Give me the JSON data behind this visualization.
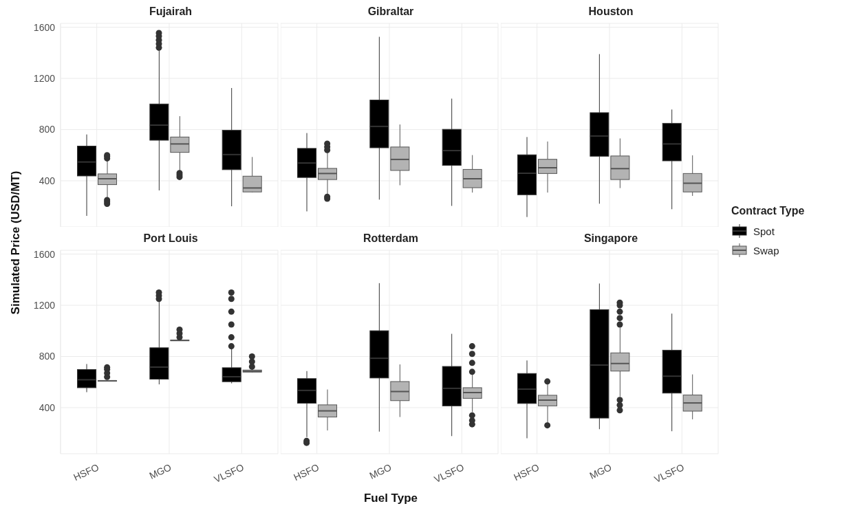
{
  "chart_data": [
    {
      "type": "box",
      "title": "Fujairah",
      "ylabel": "Simulated Price (USD/MT)",
      "legend": "right",
      "legend_title": "Contract Type",
      "categories": [
        "HSFO",
        "MGO",
        "VLSFO"
      ],
      "ylim": [
        40,
        1630
      ],
      "yticks": [
        400,
        800,
        1200,
        1600
      ],
      "grid": true,
      "tick_labels": "y",
      "series": [
        {
          "name": "Spot",
          "color": "#000000",
          "boxes": [
            {
              "low": 126,
              "q1": 438,
              "median": 547,
              "q3": 671,
              "high": 762
            },
            {
              "low": 325,
              "q1": 717,
              "median": 835,
              "q3": 1000,
              "high": 1418,
              "outliers": [
                1440,
                1470,
                1500,
                1530,
                1555
              ]
            },
            {
              "low": 201,
              "q1": 487,
              "median": 605,
              "q3": 795,
              "high": 1125
            }
          ]
        },
        {
          "name": "Swap",
          "color": "#b3b3b3",
          "boxes": [
            {
              "low": 262,
              "q1": 370,
              "median": 416,
              "q3": 454,
              "high": 560,
              "outliers": [
                220,
                235,
                250,
                575,
                590,
                600
              ]
            },
            {
              "low": 470,
              "q1": 622,
              "median": 688,
              "q3": 742,
              "high": 905,
              "outliers": [
                430,
                445,
                460
              ]
            },
            {
              "low": 310,
              "q1": 313,
              "median": 344,
              "q3": 436,
              "high": 586
            }
          ]
        }
      ]
    },
    {
      "type": "box",
      "title": "Gibraltar",
      "categories": [
        "HSFO",
        "MGO",
        "VLSFO"
      ],
      "ylim": [
        40,
        1630
      ],
      "yticks": [
        400,
        800,
        1200,
        1600
      ],
      "grid": true,
      "tick_labels": false,
      "series": [
        {
          "name": "Spot",
          "color": "#000000",
          "boxes": [
            {
              "low": 161,
              "q1": 426,
              "median": 539,
              "q3": 653,
              "high": 773
            },
            {
              "low": 253,
              "q1": 658,
              "median": 825,
              "q3": 1031,
              "high": 1525
            },
            {
              "low": 204,
              "q1": 521,
              "median": 636,
              "q3": 802,
              "high": 1042
            }
          ]
        },
        {
          "name": "Swap",
          "color": "#b3b3b3",
          "boxes": [
            {
              "low": 290,
              "q1": 410,
              "median": 457,
              "q3": 497,
              "high": 620,
              "outliers": [
                260,
                275,
                640,
                665,
                690
              ]
            },
            {
              "low": 365,
              "q1": 481,
              "median": 567,
              "q3": 664,
              "high": 840
            },
            {
              "low": 308,
              "q1": 346,
              "median": 416,
              "q3": 489,
              "high": 601
            }
          ]
        }
      ]
    },
    {
      "type": "box",
      "title": "Houston",
      "categories": [
        "HSFO",
        "MGO",
        "VLSFO"
      ],
      "ylim": [
        40,
        1630
      ],
      "yticks": [
        400,
        800,
        1200,
        1600
      ],
      "grid": true,
      "tick_labels": false,
      "series": [
        {
          "name": "Spot",
          "color": "#000000",
          "boxes": [
            {
              "low": 117,
              "q1": 291,
              "median": 459,
              "q3": 603,
              "high": 742
            },
            {
              "low": 221,
              "q1": 592,
              "median": 750,
              "q3": 932,
              "high": 1390
            },
            {
              "low": 178,
              "q1": 556,
              "median": 688,
              "q3": 849,
              "high": 957
            }
          ]
        },
        {
          "name": "Swap",
          "color": "#b3b3b3",
          "boxes": [
            {
              "low": 308,
              "q1": 457,
              "median": 502,
              "q3": 568,
              "high": 707
            },
            {
              "low": 343,
              "q1": 410,
              "median": 495,
              "q3": 594,
              "high": 731
            },
            {
              "low": 282,
              "q1": 313,
              "median": 381,
              "q3": 457,
              "high": 599
            }
          ]
        }
      ]
    },
    {
      "type": "box",
      "title": "Port Louis",
      "categories": [
        "HSFO",
        "MGO",
        "VLSFO"
      ],
      "ylim": [
        40,
        1630
      ],
      "yticks": [
        400,
        800,
        1200,
        1600
      ],
      "grid": true,
      "series": [
        {
          "name": "Spot",
          "color": "#000000",
          "boxes": [
            {
              "low": 521,
              "q1": 556,
              "median": 618,
              "q3": 698,
              "high": 741
            },
            {
              "low": 582,
              "q1": 623,
              "median": 717,
              "q3": 868,
              "high": 1231,
              "outliers": [
                1250,
                1275,
                1300
              ]
            },
            {
              "low": 590,
              "q1": 603,
              "median": 642,
              "q3": 712,
              "high": 868,
              "outliers": [
                880,
                950,
                1050,
                1150,
                1250,
                1300
              ]
            }
          ]
        },
        {
          "name": "Swap",
          "color": "#b3b3b3",
          "boxes": [
            {
              "low": 605,
              "q1": 608,
              "median": 610,
              "q3": 612,
              "high": 615,
              "outliers": [
                640,
                670,
                700,
                715
              ]
            },
            {
              "low": 922,
              "q1": 924,
              "median": 926,
              "q3": 928,
              "high": 930,
              "outliers": [
                950,
                980,
                1010
              ]
            },
            {
              "low": 675,
              "q1": 678,
              "median": 684,
              "q3": 694,
              "high": 700,
              "outliers": [
                720,
                760,
                800
              ]
            }
          ]
        }
      ]
    },
    {
      "type": "box",
      "title": "Rotterdam",
      "xlabel": "Fuel Type",
      "categories": [
        "HSFO",
        "MGO",
        "VLSFO"
      ],
      "ylim": [
        40,
        1630
      ],
      "yticks": [
        400,
        800,
        1200,
        1600
      ],
      "grid": true,
      "tick_labels": "x",
      "series": [
        {
          "name": "Spot",
          "color": "#000000",
          "boxes": [
            {
              "low": 170,
              "q1": 435,
              "median": 535,
              "q3": 627,
              "high": 686,
              "outliers": [
                125,
                140
              ]
            },
            {
              "low": 213,
              "q1": 632,
              "median": 786,
              "q3": 1001,
              "high": 1373
            },
            {
              "low": 178,
              "q1": 414,
              "median": 551,
              "q3": 722,
              "high": 977
            }
          ]
        },
        {
          "name": "Swap",
          "color": "#b3b3b3",
          "boxes": [
            {
              "low": 222,
              "q1": 327,
              "median": 375,
              "q3": 422,
              "high": 542
            },
            {
              "low": 327,
              "q1": 455,
              "median": 526,
              "q3": 604,
              "high": 738
            },
            {
              "low": 365,
              "q1": 473,
              "median": 518,
              "q3": 556,
              "high": 668,
              "outliers": [
                270,
                300,
                340,
                680,
                750,
                820,
                880
              ]
            }
          ]
        }
      ]
    },
    {
      "type": "box",
      "title": "Singapore",
      "categories": [
        "HSFO",
        "MGO",
        "VLSFO"
      ],
      "ylim": [
        40,
        1630
      ],
      "yticks": [
        400,
        800,
        1200,
        1600
      ],
      "grid": true,
      "tick_labels": "x",
      "series": [
        {
          "name": "Spot",
          "color": "#000000",
          "boxes": [
            {
              "low": 161,
              "q1": 433,
              "median": 545,
              "q3": 667,
              "high": 769
            },
            {
              "low": 232,
              "q1": 319,
              "median": 733,
              "q3": 1166,
              "high": 1370
            },
            {
              "low": 216,
              "q1": 514,
              "median": 646,
              "q3": 849,
              "high": 1135
            }
          ]
        },
        {
          "name": "Swap",
          "color": "#b3b3b3",
          "boxes": [
            {
              "low": 279,
              "q1": 414,
              "median": 459,
              "q3": 497,
              "high": 591,
              "outliers": [
                262,
                605
              ]
            },
            {
              "low": 487,
              "q1": 686,
              "median": 745,
              "q3": 828,
              "high": 1027,
              "outliers": [
                380,
                420,
                460,
                1050,
                1100,
                1150,
                1200,
                1221
              ]
            },
            {
              "low": 309,
              "q1": 373,
              "median": 437,
              "q3": 499,
              "high": 660
            }
          ]
        }
      ]
    }
  ]
}
